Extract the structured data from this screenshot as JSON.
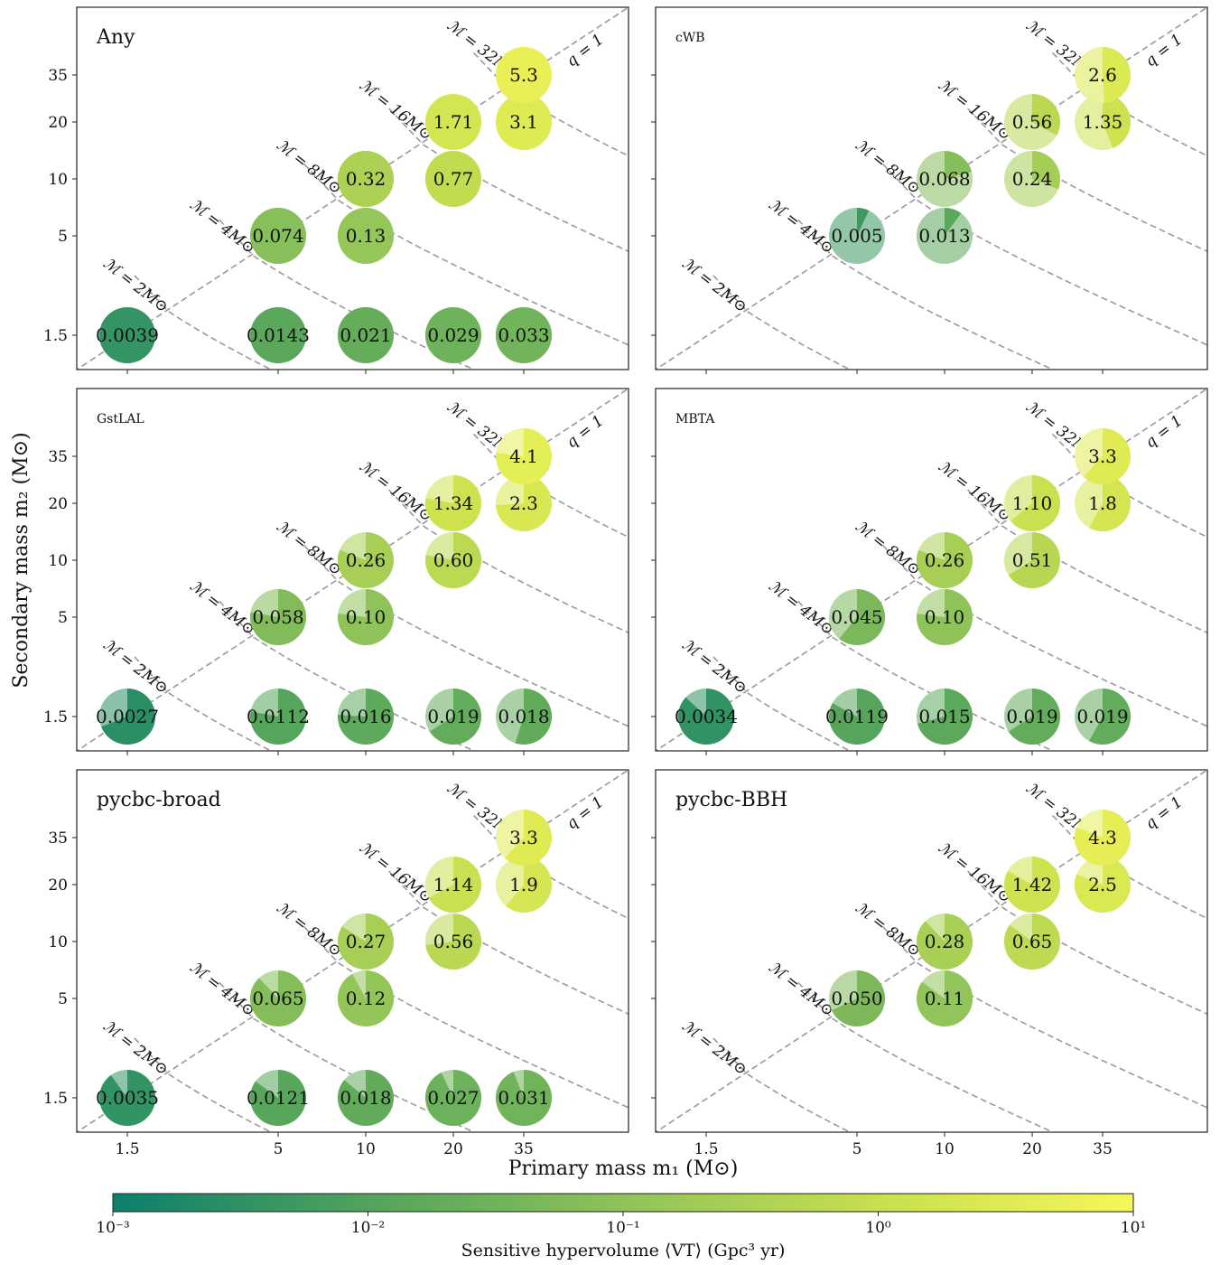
{
  "figure": {
    "xlabel": "Primary mass m₁ (M⊙)",
    "ylabel": "Secondary mass m₂ (M⊙)"
  },
  "colorbar": {
    "label": "Sensitive hypervolume ⟨VT⟩ (Gpc³ yr)",
    "ticks": [
      "10⁻³",
      "10⁻²",
      "10⁻¹",
      "10⁰",
      "10¹"
    ],
    "range": [
      0.001,
      10
    ],
    "scale": "log",
    "colors": [
      "#0c7f6c",
      "#52a35c",
      "#8fc35a",
      "#c8df4f",
      "#f6f758"
    ]
  },
  "axis_ticks": {
    "x": [
      "1.5",
      "5",
      "10",
      "20",
      "35"
    ],
    "y": [
      "1.5",
      "5",
      "10",
      "20",
      "35"
    ]
  },
  "guides": {
    "chirp_labels": [
      "ℳ = 2M⊙",
      "ℳ = 4M⊙",
      "ℳ = 8M⊙",
      "ℳ = 16M⊙",
      "ℳ = 32M⊙"
    ],
    "q_label": "q = 1"
  },
  "chart_data": [
    {
      "type": "scatter",
      "title": "Any",
      "grid": false,
      "x_categories": [
        "1.5",
        "5",
        "10",
        "20",
        "35"
      ],
      "y_categories": [
        "1.5",
        "5",
        "10",
        "20",
        "35"
      ],
      "points": [
        {
          "m1": "1.5",
          "m2": "1.5",
          "label": "0.0039",
          "value": 0.0039,
          "fraction": 1.0
        },
        {
          "m1": "5",
          "m2": "1.5",
          "label": "0.0143",
          "value": 0.0143,
          "fraction": 1.0
        },
        {
          "m1": "10",
          "m2": "1.5",
          "label": "0.021",
          "value": 0.021,
          "fraction": 1.0
        },
        {
          "m1": "20",
          "m2": "1.5",
          "label": "0.029",
          "value": 0.029,
          "fraction": 1.0
        },
        {
          "m1": "35",
          "m2": "1.5",
          "label": "0.033",
          "value": 0.033,
          "fraction": 1.0
        },
        {
          "m1": "5",
          "m2": "5",
          "label": "0.074",
          "value": 0.074,
          "fraction": 1.0
        },
        {
          "m1": "10",
          "m2": "5",
          "label": "0.13",
          "value": 0.13,
          "fraction": 1.0
        },
        {
          "m1": "10",
          "m2": "10",
          "label": "0.32",
          "value": 0.32,
          "fraction": 1.0
        },
        {
          "m1": "20",
          "m2": "10",
          "label": "0.77",
          "value": 0.77,
          "fraction": 1.0
        },
        {
          "m1": "20",
          "m2": "20",
          "label": "1.71",
          "value": 1.71,
          "fraction": 1.0
        },
        {
          "m1": "35",
          "m2": "20",
          "label": "3.1",
          "value": 3.1,
          "fraction": 1.0
        },
        {
          "m1": "35",
          "m2": "35",
          "label": "5.3",
          "value": 5.3,
          "fraction": 1.0
        }
      ]
    },
    {
      "type": "scatter",
      "title": "cWB",
      "grid": false,
      "x_categories": [
        "1.5",
        "5",
        "10",
        "20",
        "35"
      ],
      "y_categories": [
        "1.5",
        "5",
        "10",
        "20",
        "35"
      ],
      "points": [
        {
          "m1": "5",
          "m2": "5",
          "label": "0.005",
          "value": 0.005,
          "fraction": 0.07
        },
        {
          "m1": "10",
          "m2": "5",
          "label": "0.013",
          "value": 0.013,
          "fraction": 0.1
        },
        {
          "m1": "10",
          "m2": "10",
          "label": "0.068",
          "value": 0.068,
          "fraction": 0.21
        },
        {
          "m1": "20",
          "m2": "10",
          "label": "0.24",
          "value": 0.24,
          "fraction": 0.31
        },
        {
          "m1": "20",
          "m2": "20",
          "label": "0.56",
          "value": 0.56,
          "fraction": 0.33
        },
        {
          "m1": "35",
          "m2": "20",
          "label": "1.35",
          "value": 1.35,
          "fraction": 0.44
        },
        {
          "m1": "35",
          "m2": "35",
          "label": "2.6",
          "value": 2.6,
          "fraction": 0.49
        }
      ]
    },
    {
      "type": "scatter",
      "title": "GstLAL",
      "grid": false,
      "x_categories": [
        "1.5",
        "5",
        "10",
        "20",
        "35"
      ],
      "y_categories": [
        "1.5",
        "5",
        "10",
        "20",
        "35"
      ],
      "points": [
        {
          "m1": "1.5",
          "m2": "1.5",
          "label": "0.0027",
          "value": 0.0027,
          "fraction": 0.69
        },
        {
          "m1": "5",
          "m2": "1.5",
          "label": "0.0112",
          "value": 0.0112,
          "fraction": 0.78
        },
        {
          "m1": "10",
          "m2": "1.5",
          "label": "0.016",
          "value": 0.016,
          "fraction": 0.76
        },
        {
          "m1": "20",
          "m2": "1.5",
          "label": "0.019",
          "value": 0.019,
          "fraction": 0.66
        },
        {
          "m1": "35",
          "m2": "1.5",
          "label": "0.018",
          "value": 0.018,
          "fraction": 0.55
        },
        {
          "m1": "5",
          "m2": "5",
          "label": "0.058",
          "value": 0.058,
          "fraction": 0.78
        },
        {
          "m1": "10",
          "m2": "5",
          "label": "0.10",
          "value": 0.1,
          "fraction": 0.77
        },
        {
          "m1": "10",
          "m2": "10",
          "label": "0.26",
          "value": 0.26,
          "fraction": 0.81
        },
        {
          "m1": "20",
          "m2": "10",
          "label": "0.60",
          "value": 0.6,
          "fraction": 0.78
        },
        {
          "m1": "20",
          "m2": "20",
          "label": "1.34",
          "value": 1.34,
          "fraction": 0.78
        },
        {
          "m1": "35",
          "m2": "20",
          "label": "2.3",
          "value": 2.3,
          "fraction": 0.74
        },
        {
          "m1": "35",
          "m2": "35",
          "label": "4.1",
          "value": 4.1,
          "fraction": 0.77
        }
      ]
    },
    {
      "type": "scatter",
      "title": "MBTA",
      "grid": false,
      "x_categories": [
        "1.5",
        "5",
        "10",
        "20",
        "35"
      ],
      "y_categories": [
        "1.5",
        "5",
        "10",
        "20",
        "35"
      ],
      "points": [
        {
          "m1": "1.5",
          "m2": "1.5",
          "label": "0.0034",
          "value": 0.0034,
          "fraction": 0.87
        },
        {
          "m1": "5",
          "m2": "1.5",
          "label": "0.0119",
          "value": 0.0119,
          "fraction": 0.83
        },
        {
          "m1": "10",
          "m2": "1.5",
          "label": "0.015",
          "value": 0.015,
          "fraction": 0.71
        },
        {
          "m1": "20",
          "m2": "1.5",
          "label": "0.019",
          "value": 0.019,
          "fraction": 0.66
        },
        {
          "m1": "35",
          "m2": "1.5",
          "label": "0.019",
          "value": 0.019,
          "fraction": 0.58
        },
        {
          "m1": "5",
          "m2": "5",
          "label": "0.045",
          "value": 0.045,
          "fraction": 0.61
        },
        {
          "m1": "10",
          "m2": "5",
          "label": "0.10",
          "value": 0.1,
          "fraction": 0.77
        },
        {
          "m1": "10",
          "m2": "10",
          "label": "0.26",
          "value": 0.26,
          "fraction": 0.81
        },
        {
          "m1": "20",
          "m2": "10",
          "label": "0.51",
          "value": 0.51,
          "fraction": 0.66
        },
        {
          "m1": "20",
          "m2": "20",
          "label": "1.10",
          "value": 1.1,
          "fraction": 0.64
        },
        {
          "m1": "35",
          "m2": "20",
          "label": "1.8",
          "value": 1.8,
          "fraction": 0.58
        },
        {
          "m1": "35",
          "m2": "35",
          "label": "3.3",
          "value": 3.3,
          "fraction": 0.62
        }
      ]
    },
    {
      "type": "scatter",
      "title": "pycbc-broad",
      "grid": false,
      "x_categories": [
        "1.5",
        "5",
        "10",
        "20",
        "35"
      ],
      "y_categories": [
        "1.5",
        "5",
        "10",
        "20",
        "35"
      ],
      "points": [
        {
          "m1": "1.5",
          "m2": "1.5",
          "label": "0.0035",
          "value": 0.0035,
          "fraction": 0.9
        },
        {
          "m1": "5",
          "m2": "1.5",
          "label": "0.0121",
          "value": 0.0121,
          "fraction": 0.85
        },
        {
          "m1": "10",
          "m2": "1.5",
          "label": "0.018",
          "value": 0.018,
          "fraction": 0.86
        },
        {
          "m1": "20",
          "m2": "1.5",
          "label": "0.027",
          "value": 0.027,
          "fraction": 0.93
        },
        {
          "m1": "35",
          "m2": "1.5",
          "label": "0.031",
          "value": 0.031,
          "fraction": 0.94
        },
        {
          "m1": "5",
          "m2": "5",
          "label": "0.065",
          "value": 0.065,
          "fraction": 0.88
        },
        {
          "m1": "10",
          "m2": "5",
          "label": "0.12",
          "value": 0.12,
          "fraction": 0.92
        },
        {
          "m1": "10",
          "m2": "10",
          "label": "0.27",
          "value": 0.27,
          "fraction": 0.84
        },
        {
          "m1": "20",
          "m2": "10",
          "label": "0.56",
          "value": 0.56,
          "fraction": 0.73
        },
        {
          "m1": "20",
          "m2": "20",
          "label": "1.14",
          "value": 1.14,
          "fraction": 0.67
        },
        {
          "m1": "35",
          "m2": "20",
          "label": "1.9",
          "value": 1.9,
          "fraction": 0.61
        },
        {
          "m1": "35",
          "m2": "35",
          "label": "3.3",
          "value": 3.3,
          "fraction": 0.62
        }
      ]
    },
    {
      "type": "scatter",
      "title": "pycbc-BBH",
      "grid": false,
      "x_categories": [
        "1.5",
        "5",
        "10",
        "20",
        "35"
      ],
      "y_categories": [
        "1.5",
        "5",
        "10",
        "20",
        "35"
      ],
      "points": [
        {
          "m1": "5",
          "m2": "5",
          "label": "0.050",
          "value": 0.05,
          "fraction": 0.68
        },
        {
          "m1": "10",
          "m2": "5",
          "label": "0.11",
          "value": 0.11,
          "fraction": 0.85
        },
        {
          "m1": "10",
          "m2": "10",
          "label": "0.28",
          "value": 0.28,
          "fraction": 0.88
        },
        {
          "m1": "20",
          "m2": "10",
          "label": "0.65",
          "value": 0.65,
          "fraction": 0.85
        },
        {
          "m1": "20",
          "m2": "20",
          "label": "1.42",
          "value": 1.42,
          "fraction": 0.83
        },
        {
          "m1": "35",
          "m2": "20",
          "label": "2.5",
          "value": 2.5,
          "fraction": 0.81
        },
        {
          "m1": "35",
          "m2": "35",
          "label": "4.3",
          "value": 4.3,
          "fraction": 0.81
        }
      ]
    }
  ]
}
